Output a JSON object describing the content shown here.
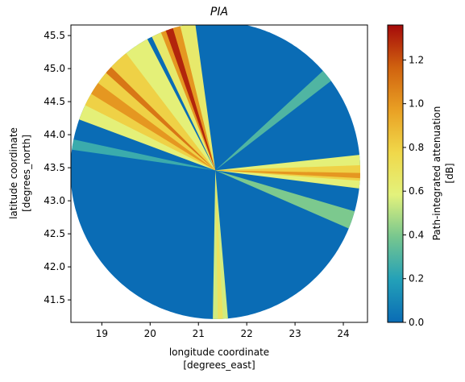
{
  "chart_data": {
    "type": "radar_sectors",
    "title": "PIA",
    "xlabel": [
      "longitude coordinate",
      "[degrees_east]"
    ],
    "ylabel": [
      "latitude coordinate",
      "[degrees_north]"
    ],
    "xlim": [
      18.36,
      24.5
    ],
    "ylim": [
      41.16,
      45.66
    ],
    "xticks": [
      19,
      20,
      21,
      22,
      23,
      24
    ],
    "yticks": [
      41.5,
      {
        "value": 42,
        "label": "42.0"
      },
      42.5,
      {
        "value": 43,
        "label": "43.0"
      },
      43.5,
      {
        "value": 44,
        "label": "44.0"
      },
      44.5,
      {
        "value": 45,
        "label": "45.0"
      },
      45.5
    ],
    "center": [
      21.35,
      43.46
    ],
    "radius": [
      3.0,
      2.25
    ],
    "colormap": [
      "#0a6cb5",
      "#23a0b8",
      "#76c68f",
      "#e3f27c",
      "#f0d84a",
      "#e9a024",
      "#d0620f",
      "#a50a0a"
    ],
    "colorbar": {
      "label": [
        "Path-integrated attenuation",
        "[dB]"
      ],
      "clim": [
        0,
        1.36
      ],
      "ticks": [
        {
          "value": 0,
          "label": "0.0"
        },
        0.2,
        0.4,
        0.6,
        0.8,
        {
          "value": 1,
          "label": "1.0"
        },
        1.2
      ]
    },
    "sectors": [
      {
        "azimuth": [
          0,
          360
        ],
        "value": 0
      },
      {
        "azimuth": [
          278,
          282
        ],
        "value": 0.25
      },
      {
        "azimuth": [
          48,
          53
        ],
        "value": 0.3
      },
      {
        "azimuth": [
          106,
          113
        ],
        "value": 0.4
      },
      {
        "azimuth": [
          290,
          332
        ],
        "value": 0.6
      },
      {
        "azimuth": [
          296,
          322
        ],
        "value": 0.8
      },
      {
        "azimuth": [
          301,
          306
        ],
        "value": 1.0
      },
      {
        "azimuth": [
          311,
          314
        ],
        "value": 1.1
      },
      {
        "azimuth": [
          334,
          352
        ],
        "value": 0.65
      },
      {
        "azimuth": [
          338,
          346
        ],
        "value": 1.0
      },
      {
        "azimuth": [
          340,
          343
        ],
        "value": 1.3
      },
      {
        "azimuth": [
          84,
          97
        ],
        "value": 0.6
      },
      {
        "azimuth": [
          88,
          94
        ],
        "value": 0.8
      },
      {
        "azimuth": [
          91,
          93
        ],
        "value": 1.0
      },
      {
        "azimuth": [
          175,
          181
        ],
        "value": 0.55
      },
      {
        "azimuth": [
          177,
          179
        ],
        "value": 0.7
      }
    ]
  }
}
